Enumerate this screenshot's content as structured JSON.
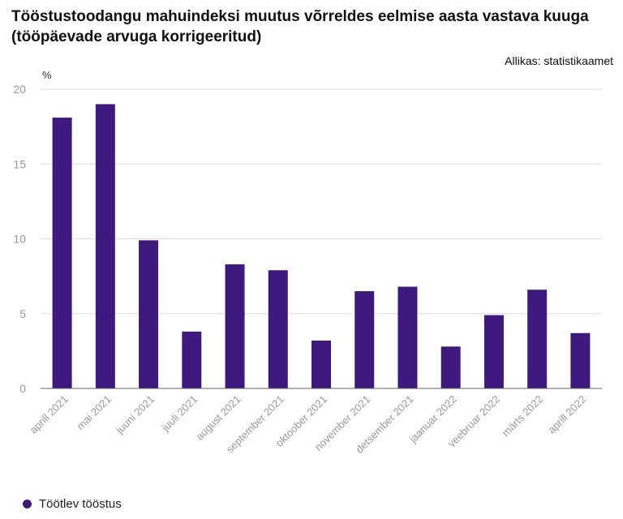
{
  "title": "Tööstustoodangu mahuindeksi muutus võrreldes eelmise aasta vastava kuuga (tööpäevade arvuga korrigeeritud)",
  "source": "Allikas: statistikaamet",
  "colors": {
    "bar": "#3f1a7e",
    "grid": "#dddddd",
    "axis": "#666666",
    "tick_label": "#999999"
  },
  "chart_data": {
    "type": "bar",
    "title": "Tööstustoodangu mahuindeksi muutus võrreldes eelmise aasta vastava kuuga (tööpäevade arvuga korrigeeritud)",
    "ylabel": "%",
    "xlabel": "",
    "ylim": [
      0,
      20
    ],
    "yticks": [
      0,
      5,
      10,
      15,
      20
    ],
    "grid": true,
    "legend_position": "bottom-left",
    "categories": [
      "aprill 2021",
      "mai 2021",
      "juuni 2021",
      "juuli 2021",
      "august 2021",
      "september 2021",
      "oktoober 2021",
      "november 2021",
      "detsember 2021",
      "jaanuar 2022",
      "veebruar 2022",
      "märts 2022",
      "aprill 2022"
    ],
    "series": [
      {
        "name": "Töötlev tööstus",
        "values": [
          18.1,
          19.0,
          9.9,
          3.8,
          8.3,
          7.9,
          3.2,
          6.5,
          6.8,
          2.8,
          4.9,
          6.6,
          3.7
        ]
      }
    ]
  }
}
